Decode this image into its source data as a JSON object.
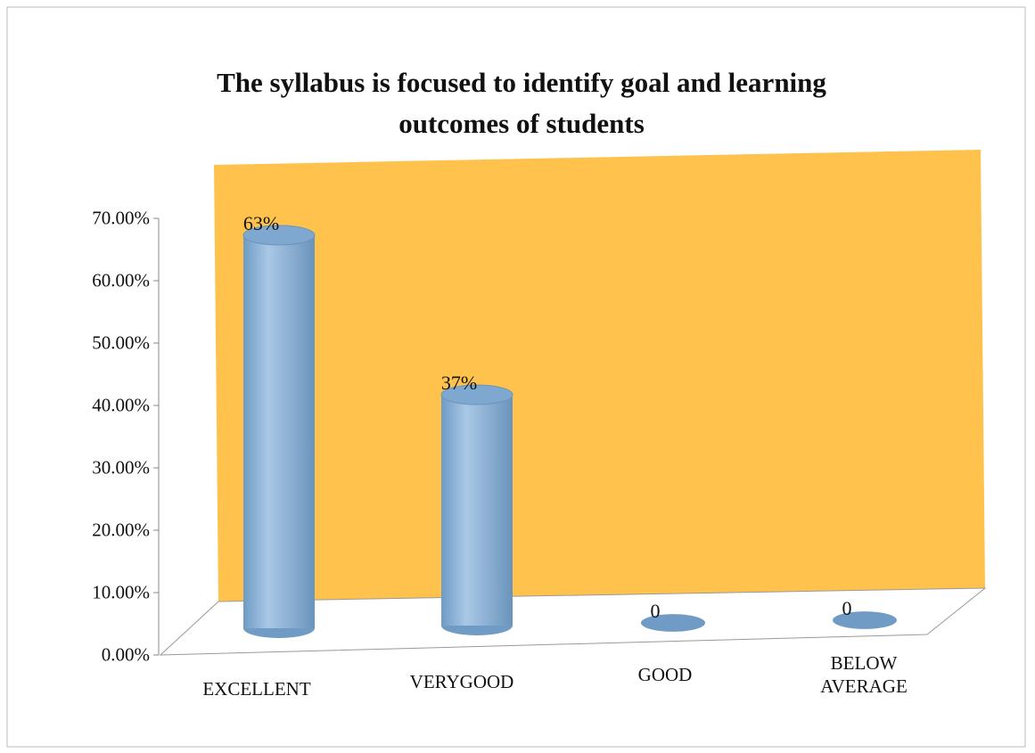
{
  "chart_data": {
    "type": "bar",
    "title": "The syllabus is focused to identify goal and learning outcomes of students",
    "categories": [
      "EXCELLENT",
      "VERYGOOD",
      "GOOD",
      "BELOW AVERAGE"
    ],
    "values": [
      63,
      37,
      0,
      0
    ],
    "value_labels": [
      "63%",
      "37%",
      "0",
      "0"
    ],
    "color": "#8fb4d6",
    "wall_color": "#ffc34d",
    "ylim": [
      0,
      70
    ],
    "yticks": [
      {
        "value": 0,
        "label": "0.00%"
      },
      {
        "value": 10,
        "label": "10.00%"
      },
      {
        "value": 20,
        "label": "20.00%"
      },
      {
        "value": 30,
        "label": "30.00%"
      },
      {
        "value": 40,
        "label": "40.00%"
      },
      {
        "value": 50,
        "label": "50.00%"
      },
      {
        "value": 60,
        "label": "60.00%"
      },
      {
        "value": 70,
        "label": "70.00%"
      }
    ]
  }
}
